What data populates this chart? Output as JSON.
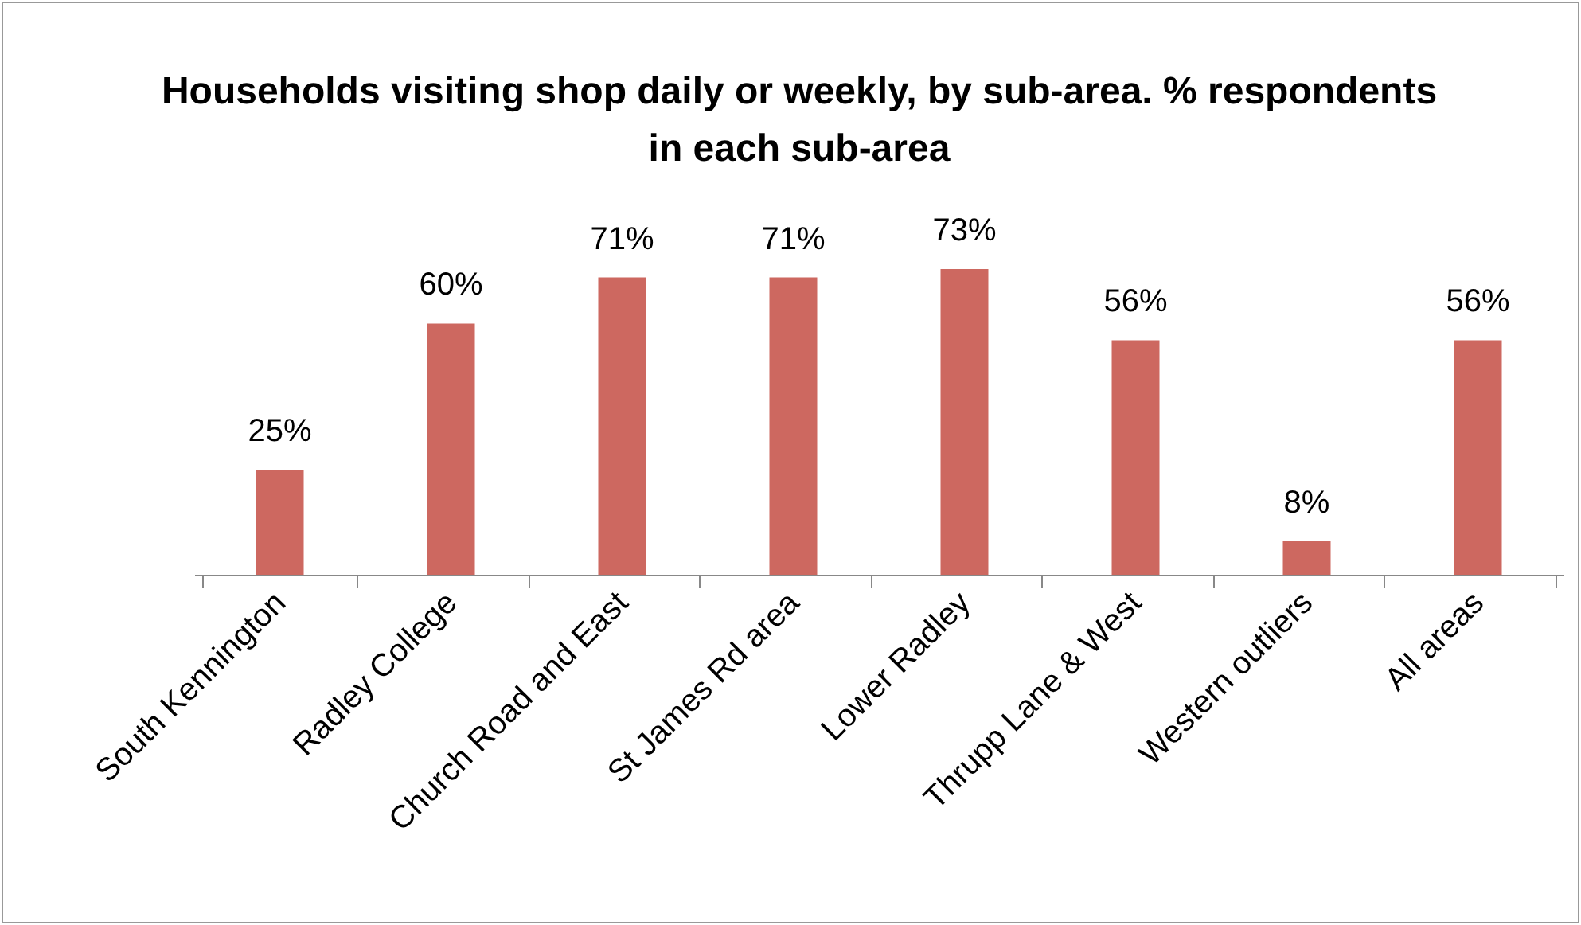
{
  "chart_data": {
    "type": "bar",
    "title": "Households visiting shop daily or weekly, by sub-area. % respondents in each sub-area",
    "categories": [
      "South Kennington",
      "Radley College",
      "Church Road and East",
      "St James Rd area",
      "Lower Radley",
      "Thrupp Lane & West",
      "Western outliers",
      "All areas"
    ],
    "values": [
      25,
      60,
      71,
      71,
      73,
      56,
      8,
      56
    ],
    "value_labels": [
      "25%",
      "60%",
      "71%",
      "71%",
      "73%",
      "56%",
      "8%",
      "56%"
    ],
    "color": "#cd6860"
  }
}
